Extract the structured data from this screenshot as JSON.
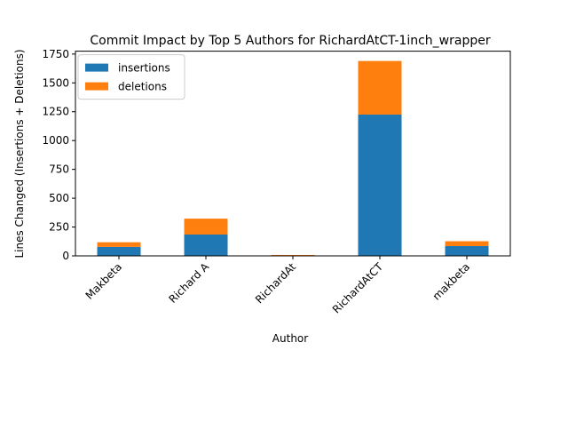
{
  "chart_data": {
    "type": "bar",
    "stacked": true,
    "title": "Commit Impact by Top 5 Authors for RichardAtCT-1inch_wrapper",
    "xlabel": "Author",
    "ylabel": "Lines Changed (Insertions + Deletions)",
    "categories": [
      "Makbeta",
      "Richard A",
      "RichardAt",
      "RichardAtCT",
      "makbeta"
    ],
    "series": [
      {
        "name": "insertions",
        "color": "#1f77b4",
        "values": [
          78,
          185,
          4,
          1225,
          85
        ]
      },
      {
        "name": "deletions",
        "color": "#ff7f0e",
        "values": [
          40,
          138,
          4,
          465,
          42
        ]
      }
    ],
    "ylim": [
      0,
      1775
    ],
    "yticks": [
      0,
      250,
      500,
      750,
      1000,
      1250,
      1500,
      1750
    ],
    "legend": "top-left",
    "grid": false
  }
}
